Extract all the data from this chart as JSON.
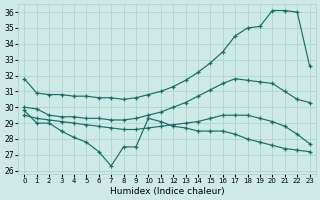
{
  "xlabel": "Humidex (Indice chaleur)",
  "bg_color": "#ceeae7",
  "grid_color": "#afd4d0",
  "line_color": "#1a6e65",
  "xlim": [
    -0.5,
    23.5
  ],
  "ylim": [
    25.8,
    36.5
  ],
  "yticks": [
    26,
    27,
    28,
    29,
    30,
    31,
    32,
    33,
    34,
    35,
    36
  ],
  "xticks": [
    0,
    1,
    2,
    3,
    4,
    5,
    6,
    7,
    8,
    9,
    10,
    11,
    12,
    13,
    14,
    15,
    16,
    17,
    18,
    19,
    20,
    21,
    22,
    23
  ],
  "lines": [
    {
      "x": [
        0,
        1,
        2,
        3,
        4,
        5,
        6,
        7,
        8,
        9,
        10,
        11,
        12,
        13,
        14,
        15,
        16,
        17,
        18,
        19,
        20,
        21,
        22,
        23
      ],
      "y": [
        31.8,
        30.9,
        30.8,
        30.8,
        30.7,
        30.7,
        30.6,
        30.6,
        30.5,
        30.6,
        30.8,
        31.0,
        31.3,
        31.7,
        32.2,
        32.8,
        33.5,
        34.5,
        35.0,
        35.1,
        36.1,
        36.1,
        36.0,
        32.6
      ]
    },
    {
      "x": [
        0,
        1,
        2,
        3,
        4,
        5,
        6,
        7,
        8,
        9,
        10,
        11,
        12,
        13,
        14,
        15,
        16,
        17,
        18,
        19,
        20,
        21,
        22,
        23
      ],
      "y": [
        30.0,
        29.9,
        29.5,
        29.4,
        29.4,
        29.3,
        29.3,
        29.2,
        29.2,
        29.3,
        29.5,
        29.7,
        30.0,
        30.3,
        30.7,
        31.1,
        31.5,
        31.8,
        31.7,
        31.6,
        31.5,
        31.0,
        30.5,
        30.3
      ]
    },
    {
      "x": [
        0,
        1,
        2,
        3,
        4,
        5,
        6,
        7,
        8,
        9,
        10,
        11,
        12,
        13,
        14,
        15,
        16,
        17,
        18,
        19,
        20,
        21,
        22,
        23
      ],
      "y": [
        29.5,
        29.3,
        29.2,
        29.1,
        29.0,
        28.9,
        28.8,
        28.7,
        28.6,
        28.6,
        28.7,
        28.8,
        28.9,
        29.0,
        29.1,
        29.3,
        29.5,
        29.5,
        29.5,
        29.3,
        29.1,
        28.8,
        28.3,
        27.7
      ]
    },
    {
      "x": [
        0,
        1,
        2,
        3,
        4,
        5,
        6,
        7,
        8,
        9,
        10,
        11,
        12,
        13,
        14,
        15,
        16,
        17,
        18,
        19,
        20,
        21,
        22,
        23
      ],
      "y": [
        29.8,
        29.0,
        29.0,
        28.5,
        28.1,
        27.8,
        27.2,
        26.3,
        27.5,
        27.5,
        29.3,
        29.1,
        28.8,
        28.7,
        28.5,
        28.5,
        28.5,
        28.3,
        28.0,
        27.8,
        27.6,
        27.4,
        27.3,
        27.2
      ]
    }
  ]
}
